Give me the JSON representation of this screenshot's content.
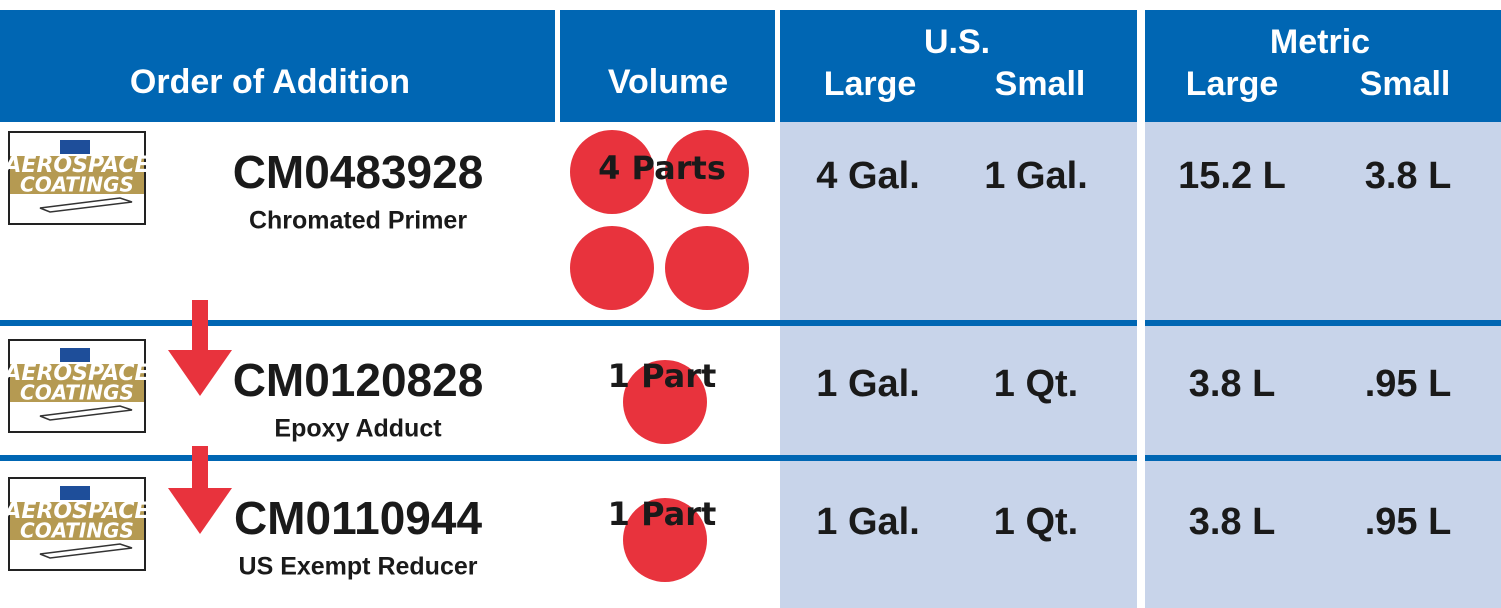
{
  "header": {
    "order": "Order of Addition",
    "volume": "Volume",
    "us": "U.S.",
    "metric": "Metric",
    "large": "Large",
    "small": "Small"
  },
  "logo": {
    "line1": "AEROSPACE",
    "line2": "COATINGS"
  },
  "rows": [
    {
      "code": "CM0483928",
      "name": "Chromated Primer",
      "volume": "4 Parts",
      "us_large": "4 Gal.",
      "us_small": "1 Gal.",
      "metric_large": "15.2 L",
      "metric_small": "3.8 L"
    },
    {
      "code": "CM0120828",
      "name": "Epoxy Adduct",
      "volume": "1 Part",
      "us_large": "1 Gal.",
      "us_small": "1 Qt.",
      "metric_large": "3.8 L",
      "metric_small": ".95 L"
    },
    {
      "code": "CM0110944",
      "name": "US Exempt Reducer",
      "volume": "1 Part",
      "us_large": "1 Gal.",
      "us_small": "1 Qt.",
      "metric_large": "3.8 L",
      "metric_small": ".95 L"
    }
  ]
}
